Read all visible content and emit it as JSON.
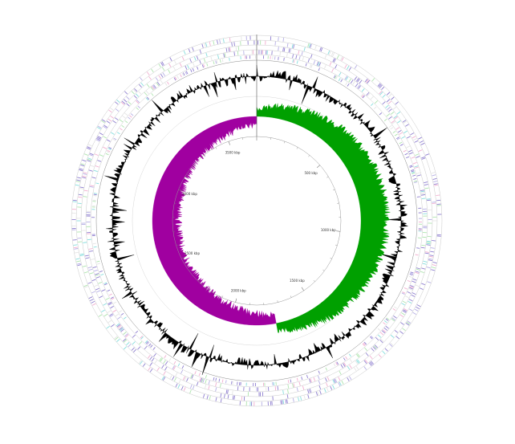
{
  "map": {
    "genome_length_kbp": 3700,
    "colors": {
      "gc_skew_positive": "#00a000",
      "gc_skew_negative": "#a000a0",
      "gc_content": "#000000",
      "feature_primary": "#7b68c8",
      "feature_light": "#a8a0e0",
      "feature_cyan": "#70d8d8",
      "feature_pink": "#f0a0c8",
      "feature_green": "#a0e0a0",
      "ring_line": "#888888"
    },
    "tick_labels": [
      {
        "kbp": 500,
        "label": "500 kbp"
      },
      {
        "kbp": 1000,
        "label": "1000 kbp"
      },
      {
        "kbp": 1500,
        "label": "1500 kbp"
      },
      {
        "kbp": 2000,
        "label": "2000 kbp"
      },
      {
        "kbp": 2500,
        "label": "2500 kbp"
      },
      {
        "kbp": 3000,
        "label": "3000 kbp"
      },
      {
        "kbp": 3500,
        "label": "3500 kbp"
      }
    ]
  }
}
